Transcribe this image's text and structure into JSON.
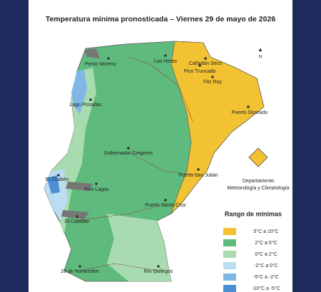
{
  "title": "Temperatura mínima pronosticada – Viernes 29 de mayo de 2026",
  "cities": [
    "Perito Moreno",
    "Las Heras",
    "Cañadón Seco",
    "Pico Truncado",
    "Fitz Roy",
    "Puerto Deseado",
    "Lago Posadas",
    "Gobernador Gregores",
    "Puerto San Julián",
    "El Chaltén",
    "Tres Lagos",
    "Puerto Santa Cruz",
    "El Calafate",
    "28 de Noviembre",
    "Río Gallegos"
  ],
  "institution": [
    "Departamento",
    "Meteorología y Climatología"
  ],
  "legend": {
    "title": "Rango  de mínimas",
    "items": [
      {
        "label": "5°C a 10°C",
        "color": "#f2c232"
      },
      {
        "label": "2°C a 5°C",
        "color": "#5fba7d"
      },
      {
        "label": "0°C a 2°C",
        "color": "#a8dbb0"
      },
      {
        "label": "-2°C a 0°C",
        "color": "#bcdcf0"
      },
      {
        "label": "-5°C a -2°C",
        "color": "#80b7e6"
      },
      {
        "label": "-10°C a -5°C",
        "color": "#4a8fd4"
      }
    ]
  }
}
